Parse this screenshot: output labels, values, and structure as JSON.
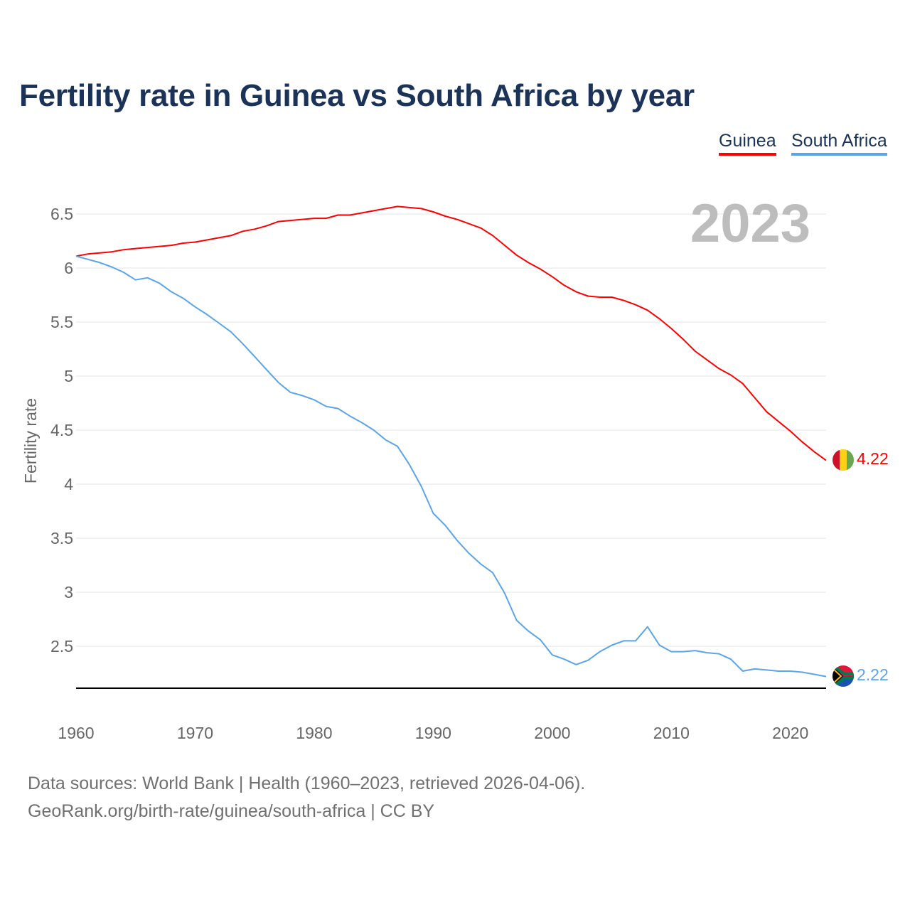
{
  "title": "Fertility rate in Guinea vs South Africa by year",
  "legend": [
    "Guinea",
    "South Africa"
  ],
  "year_label": "2023",
  "footer": {
    "line1": "Data sources: World Bank | Health (1960–2023, retrieved 2026-04-06).",
    "line2": "GeoRank.org/birth-rate/guinea/south-africa | CC BY"
  },
  "chart_data": {
    "type": "line",
    "title": "Fertility rate in Guinea vs South Africa by year",
    "xlabel": "",
    "ylabel": "Fertility rate",
    "xlim": [
      1960,
      2023
    ],
    "ylim": [
      2.11,
      6.6
    ],
    "xticks": [
      "1960",
      "1970",
      "1980",
      "1990",
      "2000",
      "2010",
      "2020"
    ],
    "yticks": [
      "2.5",
      "3",
      "3.5",
      "4",
      "4.5",
      "5",
      "5.5",
      "6",
      "6.5"
    ],
    "grid": true,
    "legend_position": "top-right",
    "x_start": 1960,
    "series": [
      {
        "name": "Guinea",
        "color": "#ff0000",
        "end_label": "4.22",
        "values": [
          6.11,
          6.13,
          6.14,
          6.15,
          6.17,
          6.18,
          6.19,
          6.2,
          6.21,
          6.23,
          6.24,
          6.26,
          6.28,
          6.3,
          6.34,
          6.36,
          6.39,
          6.43,
          6.44,
          6.45,
          6.46,
          6.46,
          6.49,
          6.49,
          6.51,
          6.53,
          6.55,
          6.57,
          6.56,
          6.55,
          6.52,
          6.48,
          6.45,
          6.41,
          6.37,
          6.3,
          6.21,
          6.12,
          6.05,
          5.99,
          5.92,
          5.84,
          5.78,
          5.74,
          5.73,
          5.73,
          5.7,
          5.66,
          5.61,
          5.53,
          5.44,
          5.34,
          5.23,
          5.15,
          5.07,
          5.01,
          4.93,
          4.8,
          4.67,
          4.58,
          4.49,
          4.39,
          4.3,
          4.22
        ]
      },
      {
        "name": "South Africa",
        "color": "#5aa5ea",
        "end_label": "2.22",
        "values": [
          6.11,
          6.08,
          6.05,
          6.01,
          5.96,
          5.89,
          5.91,
          5.86,
          5.78,
          5.72,
          5.64,
          5.57,
          5.49,
          5.41,
          5.3,
          5.18,
          5.06,
          4.94,
          4.85,
          4.82,
          4.78,
          4.72,
          4.7,
          4.63,
          4.57,
          4.5,
          4.41,
          4.35,
          4.18,
          3.98,
          3.73,
          3.62,
          3.48,
          3.36,
          3.26,
          3.18,
          2.99,
          2.74,
          2.64,
          2.56,
          2.42,
          2.38,
          2.33,
          2.37,
          2.45,
          2.51,
          2.55,
          2.55,
          2.68,
          2.51,
          2.45,
          2.45,
          2.46,
          2.44,
          2.43,
          2.38,
          2.27,
          2.29,
          2.28,
          2.27,
          2.27,
          2.26,
          2.24,
          2.22
        ]
      }
    ]
  }
}
